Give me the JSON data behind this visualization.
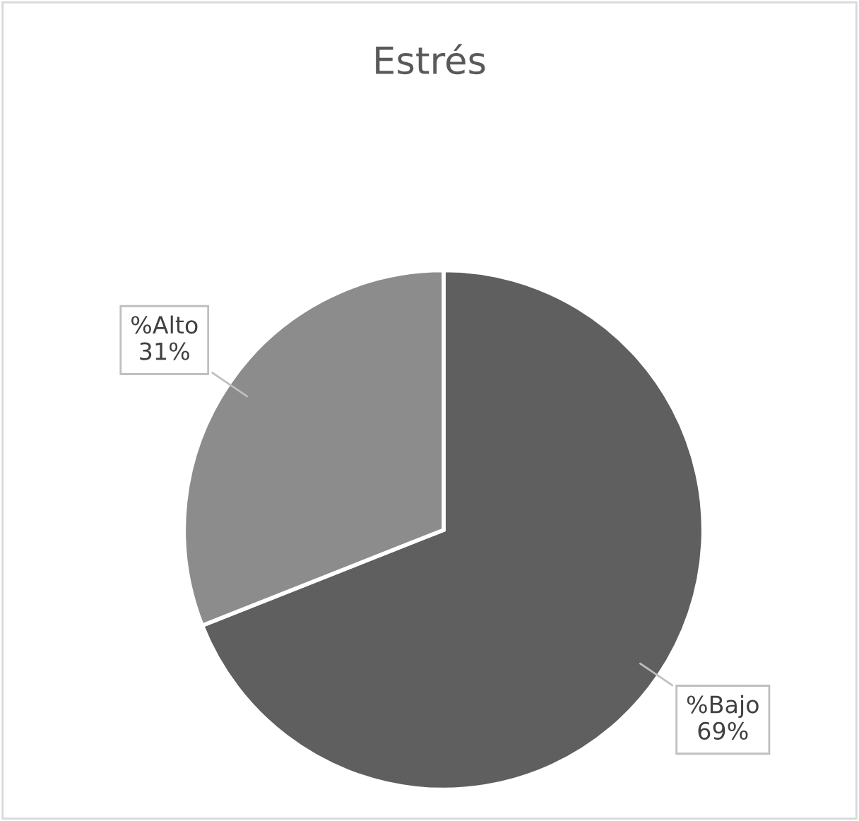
{
  "chart_data": {
    "type": "pie",
    "title": "Estrés",
    "categories": [
      "%Bajo",
      "%Alto"
    ],
    "values": [
      69,
      31
    ],
    "colors": [
      "#5f5f5f",
      "#8c8c8c"
    ],
    "value_labels": [
      "69%",
      "31%"
    ],
    "legend": false
  }
}
